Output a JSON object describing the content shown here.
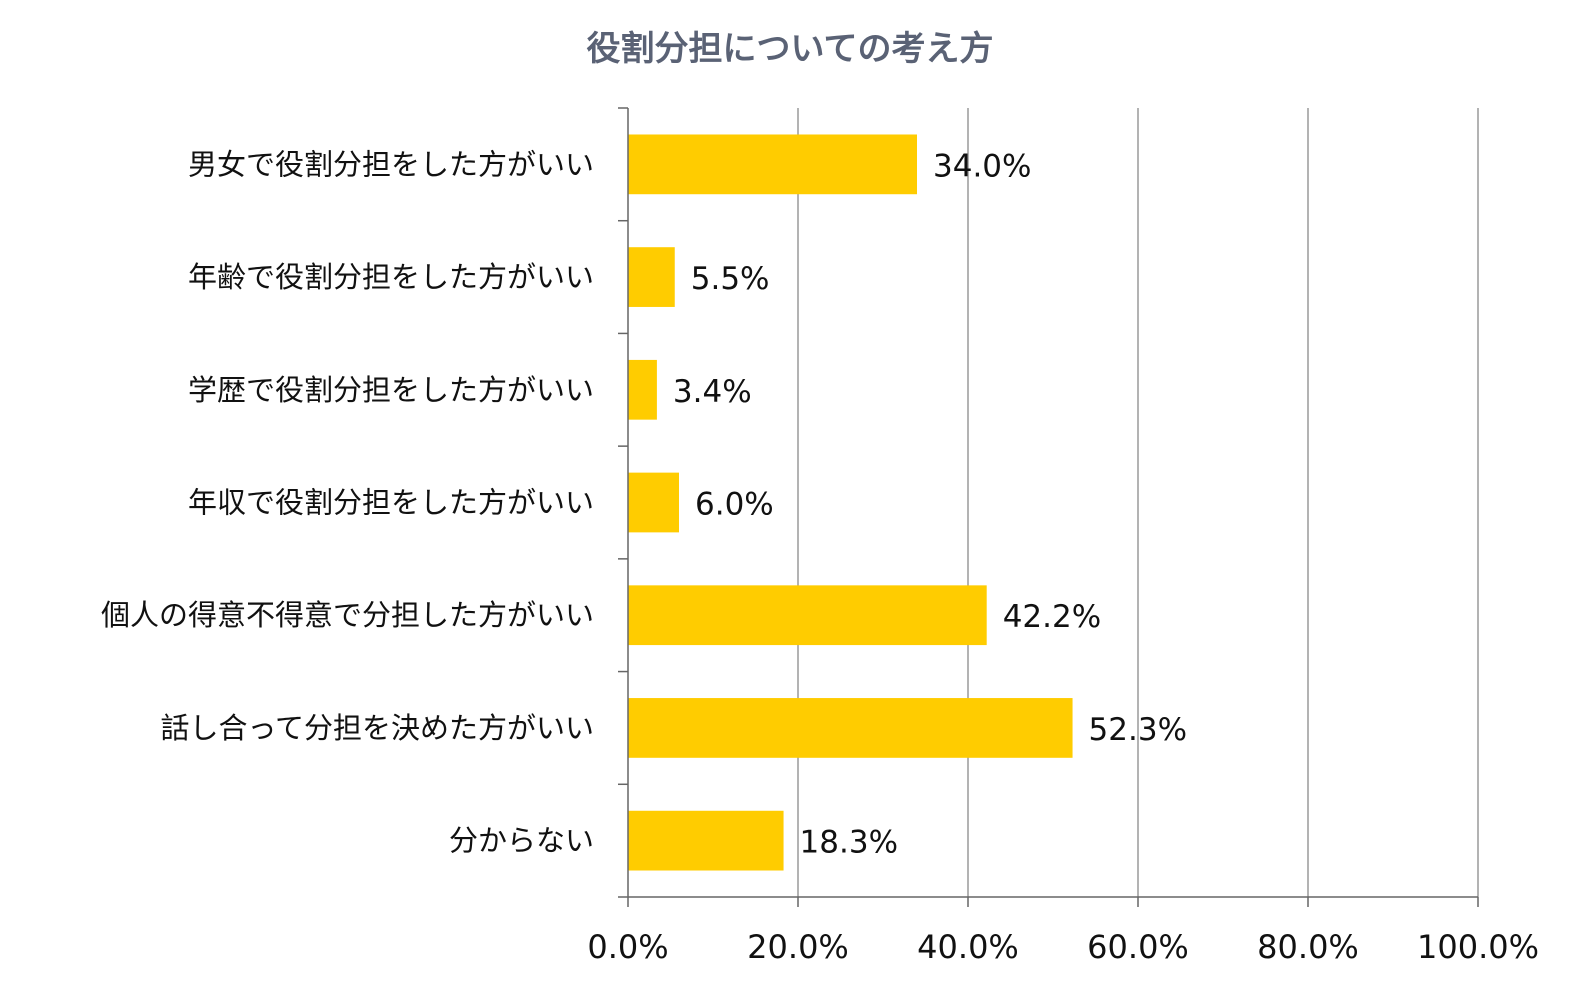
{
  "chart_data": {
    "type": "bar",
    "orientation": "horizontal",
    "title": "役割分担についての考え方",
    "categories": [
      "男女で役割分担をした方がいい",
      "年齢で役割分担をした方がいい",
      "学歴で役割分担をした方がいい",
      "年収で役割分担をした方がいい",
      "個人の得意不得意で分担した方がいい",
      "話し合って分担を決めた方がいい",
      "分からない"
    ],
    "values": [
      34.0,
      5.5,
      3.4,
      6.0,
      42.2,
      52.3,
      18.3
    ],
    "value_labels": [
      "34.0%",
      "5.5%",
      "3.4%",
      "6.0%",
      "42.2%",
      "52.3%",
      "18.3%"
    ],
    "xlim": [
      0,
      100
    ],
    "xticks": [
      0,
      20,
      40,
      60,
      80,
      100
    ],
    "xtick_labels": [
      "0.0%",
      "20.0%",
      "40.0%",
      "60.0%",
      "80.0%",
      "100.0%"
    ],
    "xlabel": "",
    "ylabel": "",
    "grid": "vertical",
    "legend": "none",
    "colors": {
      "bar": "#FFCC00",
      "title": "#5A6275",
      "grid": "#9A9A9A",
      "axis": "#666666"
    }
  }
}
